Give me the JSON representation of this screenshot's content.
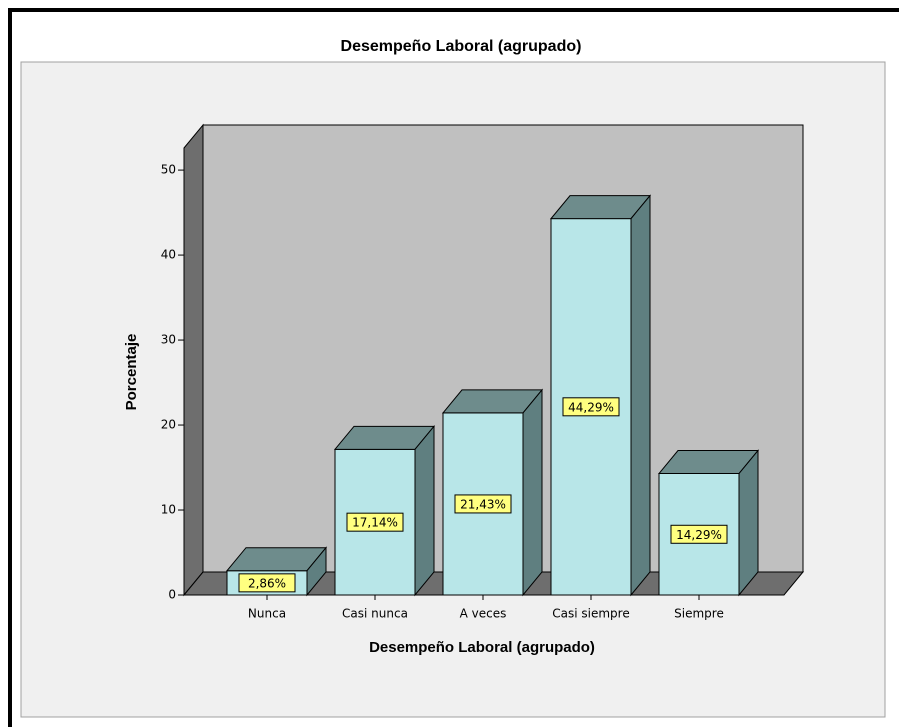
{
  "chart_data": {
    "type": "bar3d",
    "title": "Desempeño Laboral (agrupado)",
    "x_label": "Desempeño Laboral (agrupado)",
    "y_label": "Porcentaje",
    "categories": [
      "Nunca",
      "Casi nunca",
      "A veces",
      "Casi siempre",
      "Siempre"
    ],
    "values": [
      2.86,
      17.14,
      21.43,
      44.29,
      14.29
    ],
    "value_labels": [
      "2,86%",
      "17,14%",
      "21,43%",
      "44,29%",
      "14,29%"
    ],
    "color": "#b8e6e8",
    "ylim": [
      0,
      52.6
    ],
    "yticks": [
      0,
      10,
      20,
      30,
      40,
      50
    ]
  }
}
